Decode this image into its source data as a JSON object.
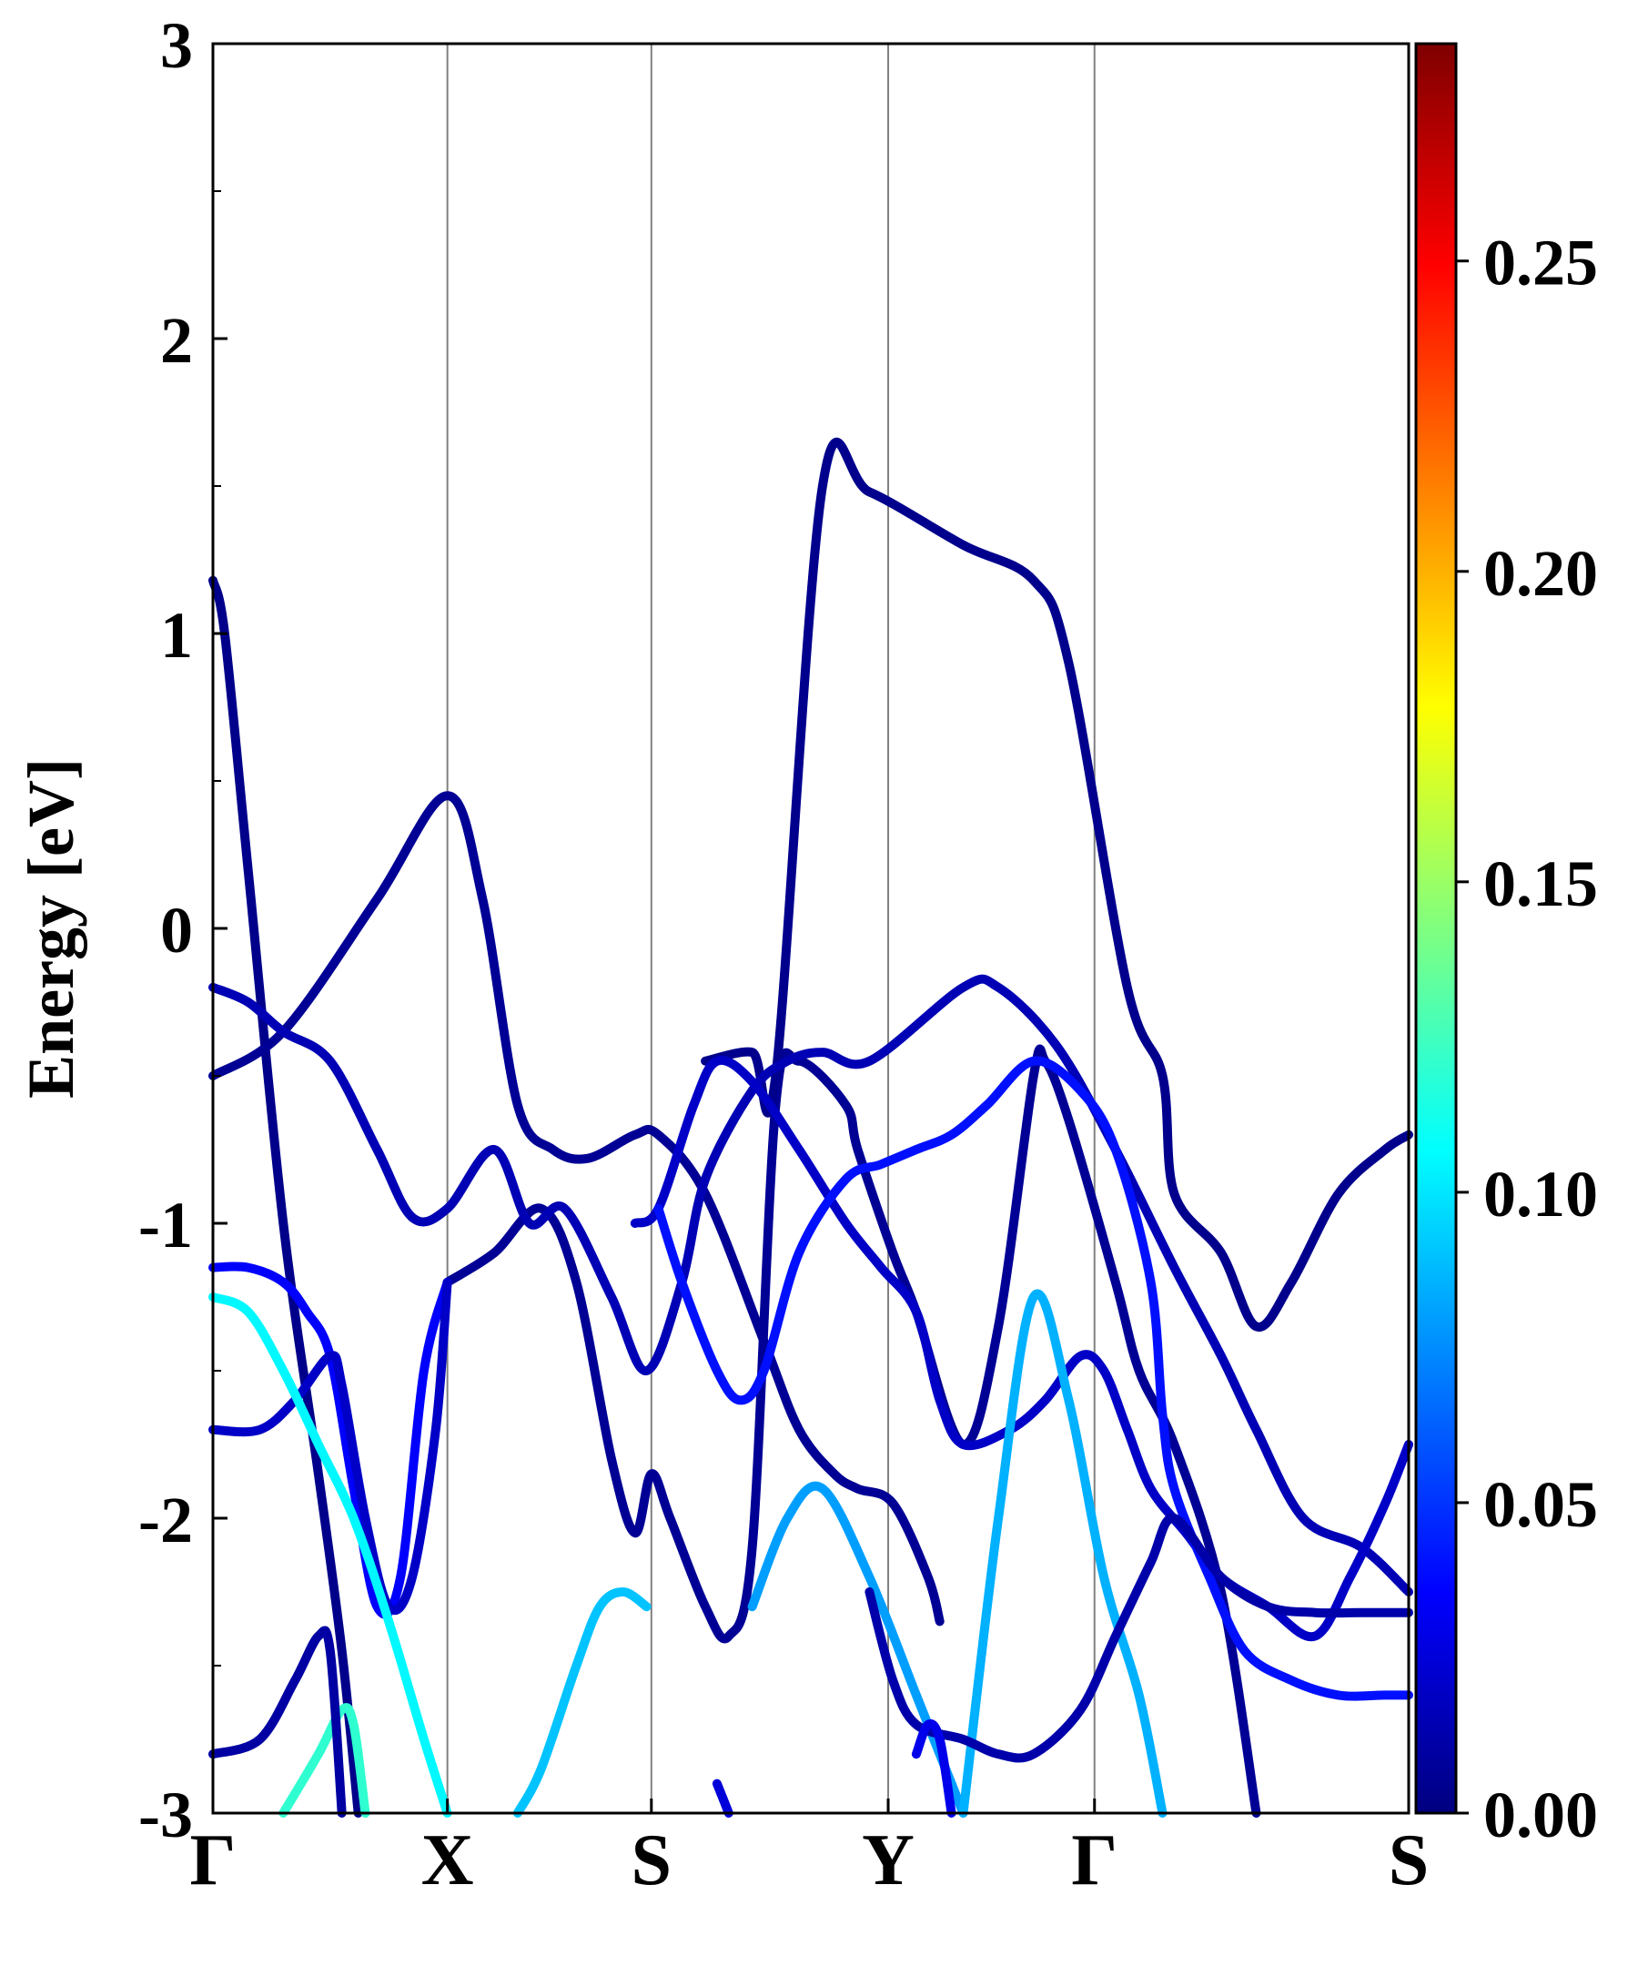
{
  "chart_data": {
    "type": "line",
    "title": "",
    "ylabel": "Energy [eV]",
    "xlabel": "",
    "ylim": [
      -3,
      3
    ],
    "grid": "vertical lines at high-symmetry points",
    "x_ticks": [
      "Γ",
      "X",
      "S",
      "Y",
      "Γ",
      "S"
    ],
    "y_ticks": [
      "3",
      "2",
      "1",
      "0",
      "-1",
      "-2",
      "-3"
    ],
    "colorbar": {
      "colormap": "jet",
      "range": [
        0.0,
        0.285
      ],
      "tick_labels": [
        "0.00",
        "0.05",
        "0.10",
        "0.15",
        "0.20",
        "0.25"
      ],
      "tick_values": [
        0.0,
        0.05,
        0.1,
        0.15,
        0.2,
        0.25
      ]
    },
    "series": [
      {
        "c": 0.003,
        "points": [
          [
            0,
            1.18
          ],
          [
            0.05,
            1.0
          ],
          [
            0.15,
            0.2
          ],
          [
            0.3,
            -1.0
          ],
          [
            0.45,
            -1.85
          ],
          [
            0.55,
            -2.45
          ],
          [
            0.62,
            -3.0
          ]
        ]
      },
      {
        "c": 0.006,
        "points": [
          [
            0,
            -0.5
          ],
          [
            0.3,
            -0.35
          ],
          [
            0.7,
            0.1
          ],
          [
            1,
            0.45
          ],
          [
            1.15,
            0.1
          ],
          [
            1.3,
            -0.6
          ],
          [
            1.45,
            -0.75
          ],
          [
            1.6,
            -0.78
          ],
          [
            1.8,
            -0.7
          ],
          [
            1.9,
            -0.7
          ],
          [
            2.1,
            -0.9
          ],
          [
            2.35,
            -1.4
          ],
          [
            2.5,
            -1.7
          ],
          [
            2.65,
            -1.85
          ],
          [
            2.75,
            -1.9
          ],
          [
            2.9,
            -1.95
          ],
          [
            3.05,
            -2.2
          ],
          [
            3.1,
            -2.35
          ]
        ]
      },
      {
        "c": 0.006,
        "points": [
          [
            1,
            -1.2
          ],
          [
            1.2,
            -1.1
          ],
          [
            1.4,
            -0.95
          ],
          [
            1.55,
            -1.2
          ],
          [
            1.7,
            -1.8
          ],
          [
            1.8,
            -2.05
          ],
          [
            1.87,
            -1.85
          ],
          [
            1.95,
            -2.0
          ],
          [
            2.1,
            -2.3
          ],
          [
            2.2,
            -2.4
          ],
          [
            2.3,
            -2.1
          ],
          [
            2.4,
            -0.6
          ],
          [
            2.5,
            -0.45
          ],
          [
            2.7,
            -0.6
          ],
          [
            2.75,
            -0.75
          ],
          [
            2.9,
            -1.1
          ],
          [
            3.0,
            -1.3
          ],
          [
            3.2,
            -1.75
          ],
          [
            3.35,
            -1.35
          ],
          [
            3.5,
            -0.5
          ],
          [
            3.55,
            -0.45
          ],
          [
            3.65,
            -0.65
          ],
          [
            3.85,
            -1.2
          ],
          [
            3.95,
            -1.5
          ],
          [
            4.1,
            -1.75
          ],
          [
            4.3,
            -2.25
          ],
          [
            4.45,
            -3.0
          ]
        ]
      },
      {
        "c": 0.004,
        "points": [
          [
            2.1,
            -0.45
          ],
          [
            2.3,
            -0.42
          ],
          [
            2.4,
            -0.5
          ],
          [
            2.6,
            1.5
          ],
          [
            2.8,
            1.48
          ],
          [
            3.2,
            1.3
          ],
          [
            3.5,
            1.18
          ],
          [
            3.65,
            0.9
          ],
          [
            3.9,
            -0.2
          ],
          [
            4.05,
            -0.5
          ],
          [
            4.1,
            -0.9
          ],
          [
            4.3,
            -1.1
          ],
          [
            4.45,
            -1.35
          ],
          [
            4.6,
            -1.2
          ],
          [
            4.8,
            -0.9
          ],
          [
            5.0,
            -0.75
          ],
          [
            5.1,
            -0.7
          ]
        ]
      },
      {
        "c": 0.015,
        "points": [
          [
            0,
            -0.2
          ],
          [
            0.15,
            -0.25
          ],
          [
            0.3,
            -0.35
          ],
          [
            0.5,
            -0.45
          ],
          [
            0.7,
            -0.75
          ],
          [
            0.85,
            -0.98
          ],
          [
            1.0,
            -0.95
          ],
          [
            1.2,
            -0.75
          ],
          [
            1.35,
            -1.0
          ],
          [
            1.5,
            -0.95
          ],
          [
            1.7,
            -1.25
          ],
          [
            1.85,
            -1.5
          ],
          [
            2.0,
            -1.2
          ],
          [
            2.1,
            -0.85
          ],
          [
            2.3,
            -0.55
          ],
          [
            2.45,
            -0.45
          ],
          [
            2.6,
            -0.42
          ],
          [
            2.8,
            -0.45
          ],
          [
            3.2,
            -0.2
          ],
          [
            3.35,
            -0.2
          ],
          [
            3.6,
            -0.4
          ],
          [
            3.85,
            -0.75
          ],
          [
            4.1,
            -1.15
          ],
          [
            4.3,
            -1.45
          ],
          [
            4.45,
            -1.7
          ],
          [
            4.65,
            -2.0
          ],
          [
            4.9,
            -2.1
          ],
          [
            5.1,
            -2.25
          ]
        ]
      },
      {
        "c": 0.035,
        "points": [
          [
            0,
            -1.15
          ],
          [
            0.15,
            -1.15
          ],
          [
            0.3,
            -1.2
          ],
          [
            0.4,
            -1.3
          ],
          [
            0.5,
            -1.45
          ],
          [
            0.6,
            -1.9
          ],
          [
            0.7,
            -2.3
          ],
          [
            0.8,
            -2.2
          ],
          [
            0.9,
            -1.5
          ],
          [
            1.0,
            -1.2
          ]
        ]
      },
      {
        "c": 0.02,
        "points": [
          [
            0,
            -1.7
          ],
          [
            0.2,
            -1.7
          ],
          [
            0.35,
            -1.6
          ],
          [
            0.5,
            -1.45
          ],
          [
            0.55,
            -1.55
          ],
          [
            0.65,
            -2.0
          ],
          [
            0.75,
            -2.3
          ],
          [
            0.85,
            -2.2
          ],
          [
            0.95,
            -1.7
          ],
          [
            1.0,
            -1.2
          ]
        ]
      },
      {
        "c": 0.02,
        "points": [
          [
            1.8,
            -1.0
          ],
          [
            1.9,
            -0.95
          ],
          [
            2.05,
            -0.6
          ],
          [
            2.15,
            -0.45
          ],
          [
            2.3,
            -0.52
          ],
          [
            2.5,
            -0.75
          ],
          [
            2.7,
            -1.0
          ],
          [
            2.85,
            -1.15
          ],
          [
            3.0,
            -1.3
          ],
          [
            3.1,
            -1.6
          ],
          [
            3.2,
            -1.75
          ],
          [
            3.4,
            -1.7
          ],
          [
            3.55,
            -1.6
          ],
          [
            3.7,
            -1.45
          ],
          [
            3.8,
            -1.5
          ],
          [
            3.9,
            -1.7
          ],
          [
            4.0,
            -1.9
          ],
          [
            4.15,
            -2.05
          ],
          [
            4.3,
            -2.2
          ],
          [
            4.5,
            -2.3
          ],
          [
            4.7,
            -2.4
          ],
          [
            4.85,
            -2.2
          ],
          [
            5.0,
            -1.95
          ],
          [
            5.1,
            -1.75
          ]
        ]
      },
      {
        "c": 0.04,
        "points": [
          [
            1.9,
            -0.95
          ],
          [
            2.0,
            -1.2
          ],
          [
            2.15,
            -1.5
          ],
          [
            2.25,
            -1.6
          ],
          [
            2.35,
            -1.5
          ],
          [
            2.5,
            -1.1
          ],
          [
            2.7,
            -0.85
          ],
          [
            2.85,
            -0.8
          ],
          [
            3.0,
            -0.75
          ],
          [
            3.15,
            -0.7
          ],
          [
            3.3,
            -0.6
          ],
          [
            3.5,
            -0.45
          ],
          [
            3.7,
            -0.55
          ],
          [
            3.85,
            -0.75
          ],
          [
            4.0,
            -1.2
          ],
          [
            4.05,
            -1.65
          ],
          [
            4.1,
            -1.9
          ],
          [
            4.25,
            -2.2
          ],
          [
            4.4,
            -2.45
          ],
          [
            4.6,
            -2.55
          ],
          [
            4.8,
            -2.6
          ],
          [
            5.0,
            -2.6
          ],
          [
            5.1,
            -2.6
          ]
        ]
      },
      {
        "c": 0.105,
        "points": [
          [
            0,
            -1.25
          ],
          [
            0.15,
            -1.3
          ],
          [
            0.3,
            -1.5
          ],
          [
            0.45,
            -1.75
          ],
          [
            0.6,
            -2.0
          ],
          [
            0.75,
            -2.35
          ],
          [
            0.9,
            -2.75
          ],
          [
            1.0,
            -3.0
          ]
        ]
      },
      {
        "c": 0.12,
        "points": [
          [
            0.3,
            -3.0
          ],
          [
            0.45,
            -2.8
          ],
          [
            0.55,
            -2.65
          ],
          [
            0.6,
            -2.7
          ],
          [
            0.65,
            -3.0
          ]
        ]
      },
      {
        "c": 0.09,
        "points": [
          [
            1.3,
            -3.0
          ],
          [
            1.4,
            -2.85
          ],
          [
            1.55,
            -2.5
          ],
          [
            1.65,
            -2.3
          ],
          [
            1.75,
            -2.25
          ],
          [
            1.85,
            -2.3
          ]
        ]
      },
      {
        "c": 0.08,
        "points": [
          [
            2.3,
            -2.3
          ],
          [
            2.45,
            -2.0
          ],
          [
            2.6,
            -1.9
          ],
          [
            2.8,
            -2.2
          ],
          [
            3.0,
            -2.6
          ],
          [
            3.15,
            -2.9
          ],
          [
            3.2,
            -3.0
          ]
        ]
      },
      {
        "c": 0.085,
        "points": [
          [
            3.2,
            -3.0
          ],
          [
            3.35,
            -2.0
          ],
          [
            3.5,
            -1.25
          ],
          [
            3.65,
            -1.6
          ],
          [
            3.8,
            -2.2
          ],
          [
            3.95,
            -2.6
          ],
          [
            4.05,
            -3.0
          ]
        ]
      },
      {
        "c": 0.01,
        "points": [
          [
            0,
            -2.8
          ],
          [
            0.2,
            -2.75
          ],
          [
            0.35,
            -2.55
          ],
          [
            0.45,
            -2.4
          ],
          [
            0.5,
            -2.45
          ],
          [
            0.55,
            -3.0
          ]
        ]
      },
      {
        "c": 0.012,
        "points": [
          [
            2.8,
            -2.25
          ],
          [
            2.9,
            -2.55
          ],
          [
            3.0,
            -2.7
          ],
          [
            3.2,
            -2.75
          ],
          [
            3.35,
            -2.8
          ],
          [
            3.5,
            -2.8
          ],
          [
            3.7,
            -2.65
          ],
          [
            3.85,
            -2.4
          ],
          [
            4.0,
            -2.15
          ],
          [
            4.1,
            -2.0
          ],
          [
            4.3,
            -2.2
          ],
          [
            4.5,
            -2.3
          ],
          [
            4.7,
            -2.32
          ],
          [
            4.9,
            -2.32
          ],
          [
            5.1,
            -2.32
          ]
        ]
      },
      {
        "c": 0.025,
        "points": [
          [
            2.15,
            -2.9
          ],
          [
            2.2,
            -3.0
          ]
        ]
      },
      {
        "c": 0.03,
        "points": [
          [
            3.0,
            -2.8
          ],
          [
            3.05,
            -2.7
          ],
          [
            3.1,
            -2.75
          ],
          [
            3.15,
            -3.0
          ]
        ]
      }
    ]
  }
}
